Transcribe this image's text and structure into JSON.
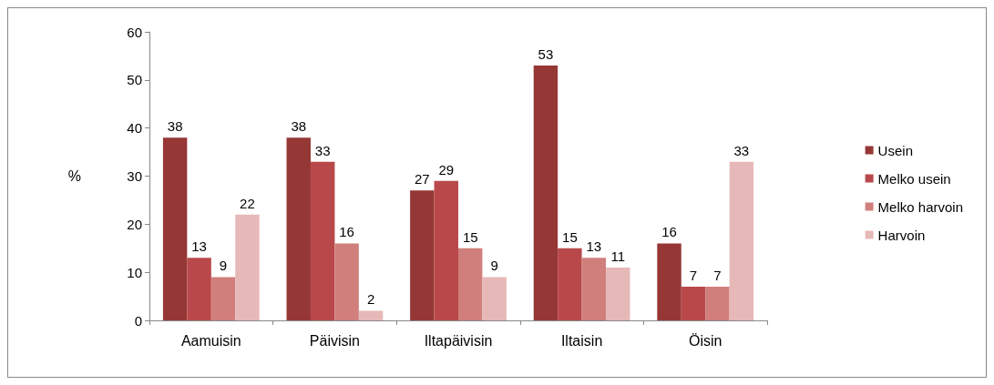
{
  "chart_data": {
    "type": "bar",
    "ylabel": "%",
    "categories": [
      "Aamuisin",
      "Päivisin",
      "Iltapäivisin",
      "Iltaisin",
      "Öisin"
    ],
    "series": [
      {
        "name": "Usein",
        "color": "#953735",
        "values": [
          38,
          38,
          27,
          53,
          16
        ]
      },
      {
        "name": "Melko usein",
        "color": "#b9484a",
        "values": [
          13,
          33,
          29,
          15,
          7
        ]
      },
      {
        "name": "Melko harvoin",
        "color": "#d07f7c",
        "values": [
          9,
          16,
          15,
          13,
          7
        ]
      },
      {
        "name": "Harvoin",
        "color": "#e6b9b8",
        "values": [
          22,
          2,
          9,
          11,
          33
        ]
      }
    ],
    "ylim": [
      0,
      60
    ],
    "yticks": [
      0,
      10,
      20,
      30,
      40,
      50,
      60
    ],
    "grid": false,
    "legend": "right",
    "data_labels": true
  }
}
